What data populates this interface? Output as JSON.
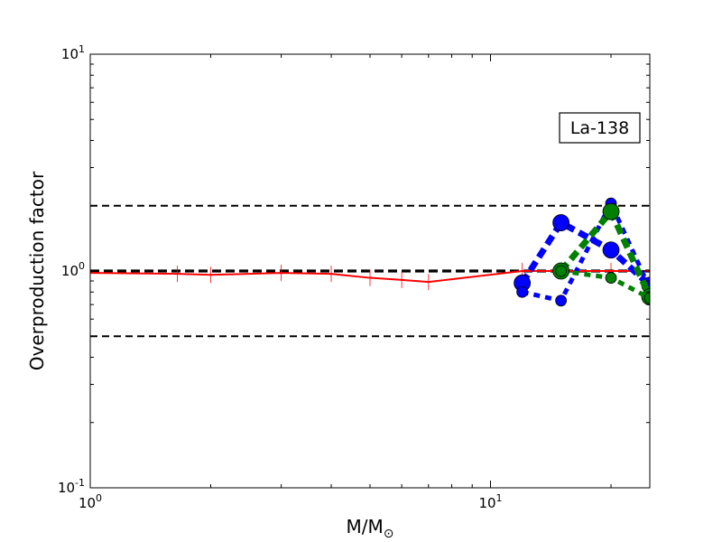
{
  "chart_data": {
    "type": "line",
    "title": "",
    "xlabel": "M/M",
    "xlabel_symbol": "⊙",
    "ylabel": "Overproduction factor",
    "xscale": "log",
    "yscale": "log",
    "xlim": [
      1,
      25
    ],
    "ylim": [
      0.1,
      10
    ],
    "grid": false,
    "x_tick_labels": [
      {
        "value": 1,
        "base": "10",
        "exp": "0"
      },
      {
        "value": 10,
        "base": "10",
        "exp": "1"
      }
    ],
    "y_tick_labels": [
      {
        "value": 0.1,
        "base": "10",
        "exp": "-1"
      },
      {
        "value": 1,
        "base": "10",
        "exp": "0"
      },
      {
        "value": 10,
        "base": "10",
        "exp": "1"
      }
    ],
    "annotation": "La-138",
    "reference_lines": [
      {
        "y": 2.0,
        "style": "dashed",
        "color": "#000000"
      },
      {
        "y": 1.0,
        "style": "dashed-bold",
        "color": "#000000"
      },
      {
        "y": 0.5,
        "style": "dashed",
        "color": "#000000"
      }
    ],
    "series": [
      {
        "style": "solid",
        "color": "#ff0000",
        "marker": "vline",
        "x": [
          1,
          1.65,
          2,
          3,
          4,
          5,
          6,
          7,
          12,
          15,
          20,
          25
        ],
        "y": [
          0.98,
          0.97,
          0.96,
          0.98,
          0.97,
          0.93,
          0.91,
          0.89,
          1.0,
          1.0,
          1.0,
          1.0
        ]
      },
      {
        "style": "dashed-thick",
        "color": "#0000ff",
        "marker": "circle-large",
        "x": [
          12,
          15,
          20,
          25
        ],
        "y": [
          0.88,
          1.67,
          1.25,
          0.86
        ]
      },
      {
        "style": "dotted",
        "color": "#0000ff",
        "marker": "circle-small",
        "x": [
          12,
          15,
          20,
          25
        ],
        "y": [
          0.8,
          0.73,
          2.05,
          0.83
        ]
      },
      {
        "style": "dashed-thick",
        "color": "#008000",
        "marker": "circle-large",
        "x": [
          15,
          20,
          25
        ],
        "y": [
          1.0,
          1.88,
          0.76
        ]
      },
      {
        "style": "dotted",
        "color": "#008000",
        "marker": "circle-small",
        "x": [
          15,
          20,
          25
        ],
        "y": [
          1.0,
          0.93,
          0.75
        ]
      }
    ]
  }
}
